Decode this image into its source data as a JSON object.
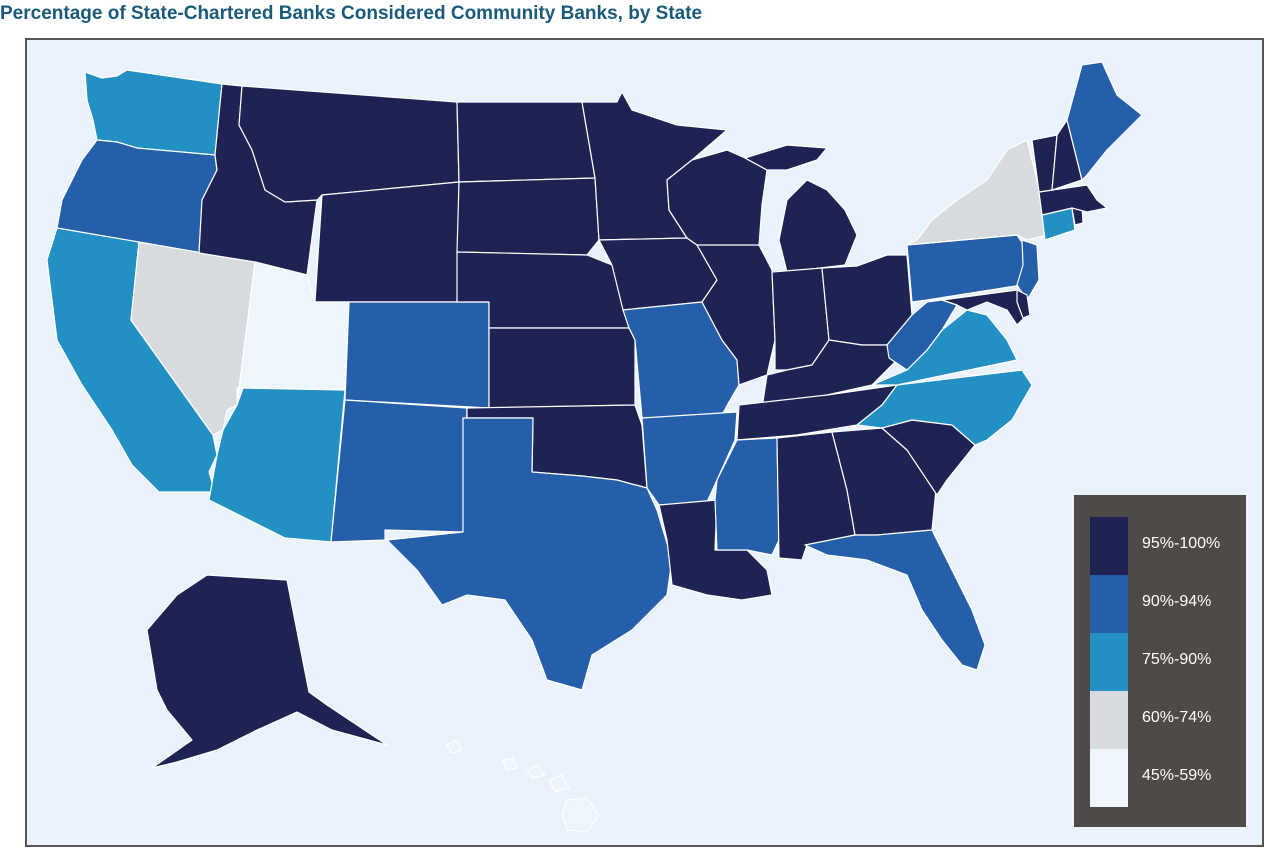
{
  "title": "Percentage of State-Chartered Banks Considered Community Banks, by State",
  "legend": [
    {
      "label": "95%-100%",
      "color": "#1f2354"
    },
    {
      "label": "90%-94%",
      "color": "#255ea9"
    },
    {
      "label": "75%-90%",
      "color": "#2390c4"
    },
    {
      "label": "60%-74%",
      "color": "#d8dbdd"
    },
    {
      "label": "45%-59%",
      "color": "#eef6fb"
    }
  ],
  "states": {
    "WA": "75%-90%",
    "OR": "90%-94%",
    "CA": "75%-90%",
    "NV": "60%-74%",
    "ID": "95%-100%",
    "MT": "95%-100%",
    "WY": "95%-100%",
    "UT": "45%-59%",
    "AZ": "75%-90%",
    "CO": "90%-94%",
    "NM": "90%-94%",
    "ND": "95%-100%",
    "SD": "95%-100%",
    "NE": "95%-100%",
    "KS": "95%-100%",
    "OK": "95%-100%",
    "TX": "90%-94%",
    "MN": "95%-100%",
    "IA": "95%-100%",
    "MO": "90%-94%",
    "AR": "90%-94%",
    "LA": "95%-100%",
    "WI": "95%-100%",
    "IL": "95%-100%",
    "MI": "95%-100%",
    "IN": "95%-100%",
    "OH": "95%-100%",
    "KY": "95%-100%",
    "TN": "95%-100%",
    "MS": "90%-94%",
    "AL": "95%-100%",
    "GA": "95%-100%",
    "FL": "90%-94%",
    "SC": "95%-100%",
    "NC": "75%-90%",
    "VA": "75%-90%",
    "WV": "90%-94%",
    "PA": "90%-94%",
    "NY": "60%-74%",
    "NJ": "90%-94%",
    "MD": "95%-100%",
    "DE": "95%-100%",
    "CT": "75%-90%",
    "RI": "95%-100%",
    "MA": "95%-100%",
    "VT": "95%-100%",
    "NH": "95%-100%",
    "ME": "90%-94%",
    "AK": "95%-100%",
    "HI": "45%-59%"
  }
}
